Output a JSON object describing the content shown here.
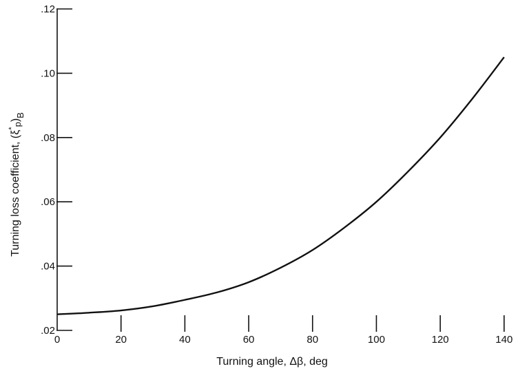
{
  "chart_data": {
    "type": "line",
    "title": "",
    "xlabel": "Turning angle, Δβ,  deg",
    "ylabel": "Turning loss coefficient, (ξ",
    "ylabel_superscript": "*",
    "ylabel_subscript": "p",
    "ylabel_close": ")",
    "ylabel_subscript2": "B",
    "xlim": [
      0,
      145
    ],
    "ylim": [
      0.02,
      0.12
    ],
    "xticks": [
      0,
      20,
      40,
      60,
      80,
      100,
      120,
      140
    ],
    "xtick_labels": [
      "0",
      "20",
      "40",
      "60",
      "80",
      "100",
      "120",
      "140"
    ],
    "yticks": [
      0.02,
      0.04,
      0.06,
      0.08,
      0.1,
      0.12
    ],
    "ytick_labels": [
      ".02",
      ".04",
      ".06",
      ".08",
      ".10",
      ".12"
    ],
    "grid": false,
    "legend": "none",
    "colors": {
      "line": "#111111",
      "axis": "#111111"
    },
    "series": [
      {
        "x": [
          0,
          10,
          20,
          30,
          40,
          50,
          60,
          70,
          80,
          90,
          100,
          110,
          120,
          130,
          140
        ],
        "values": [
          0.025,
          0.0255,
          0.0262,
          0.0275,
          0.0295,
          0.0318,
          0.035,
          0.0395,
          0.045,
          0.052,
          0.06,
          0.0695,
          0.08,
          0.092,
          0.105
        ]
      }
    ]
  }
}
